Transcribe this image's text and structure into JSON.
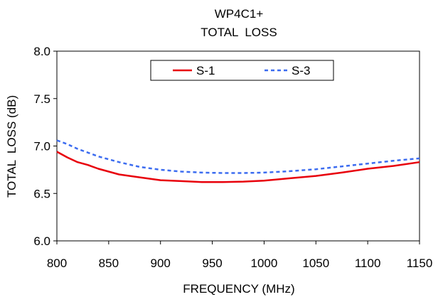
{
  "chart_data": {
    "type": "line",
    "title": "WP4C1+",
    "subtitle": "TOTAL  LOSS",
    "xlabel": "FREQUENCY (MHz)",
    "ylabel": "TOTAL  LOSS (dB)",
    "xlim": [
      800,
      1150
    ],
    "ylim": [
      6.0,
      8.0
    ],
    "x_ticks": [
      800,
      850,
      900,
      950,
      1000,
      1050,
      1100,
      1150
    ],
    "y_ticks": [
      "6.0",
      "6.5",
      "7.0",
      "7.5",
      "8.0"
    ],
    "grid": false,
    "legend_position": "top-center",
    "series": [
      {
        "name": "S-1",
        "color": "#e8000b",
        "style": "solid",
        "x": [
          800,
          810,
          820,
          830,
          840,
          850,
          860,
          880,
          900,
          920,
          940,
          960,
          980,
          1000,
          1025,
          1050,
          1075,
          1100,
          1125,
          1150
        ],
        "y": [
          6.94,
          6.88,
          6.83,
          6.8,
          6.76,
          6.73,
          6.7,
          6.67,
          6.64,
          6.63,
          6.62,
          6.62,
          6.625,
          6.635,
          6.66,
          6.685,
          6.72,
          6.76,
          6.79,
          6.83
        ]
      },
      {
        "name": "S-3",
        "color": "#3c6cf0",
        "style": "dashed",
        "x": [
          800,
          810,
          820,
          830,
          840,
          850,
          860,
          880,
          900,
          920,
          940,
          960,
          980,
          1000,
          1025,
          1050,
          1075,
          1100,
          1125,
          1150
        ],
        "y": [
          7.06,
          7.02,
          6.97,
          6.93,
          6.89,
          6.86,
          6.83,
          6.78,
          6.75,
          6.73,
          6.72,
          6.715,
          6.715,
          6.72,
          6.735,
          6.755,
          6.785,
          6.815,
          6.845,
          6.87
        ]
      }
    ]
  }
}
